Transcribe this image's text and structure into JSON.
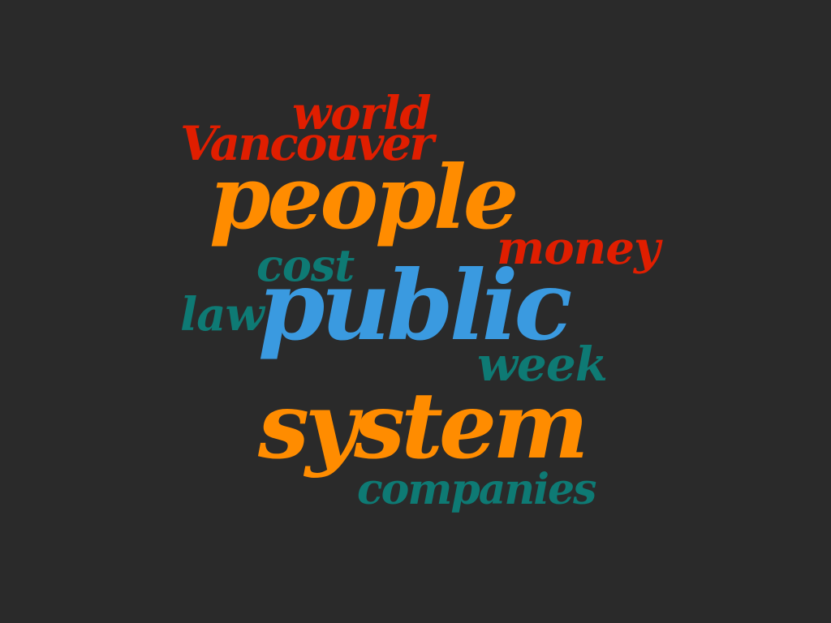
{
  "palette": {
    "background": "#2a2a2a",
    "red": "#e01e00",
    "orange": "#ff8c00",
    "teal": "#0e7a74",
    "blue": "#3a9ae0"
  },
  "words": [
    {
      "key": "world",
      "text": "world",
      "color": "#e01e00"
    },
    {
      "key": "vancouver",
      "text": "Vancouver",
      "color": "#e01e00"
    },
    {
      "key": "people",
      "text": "people",
      "color": "#ff8c00"
    },
    {
      "key": "money",
      "text": "money",
      "color": "#e01e00"
    },
    {
      "key": "cost",
      "text": "cost",
      "color": "#0e7a74"
    },
    {
      "key": "law",
      "text": "law",
      "color": "#0e7a74"
    },
    {
      "key": "public",
      "text": "public",
      "color": "#3a9ae0"
    },
    {
      "key": "week",
      "text": "week",
      "color": "#0e7a74"
    },
    {
      "key": "system",
      "text": "system",
      "color": "#ff8c00"
    },
    {
      "key": "companies",
      "text": "companies",
      "color": "#0e7a74"
    }
  ]
}
